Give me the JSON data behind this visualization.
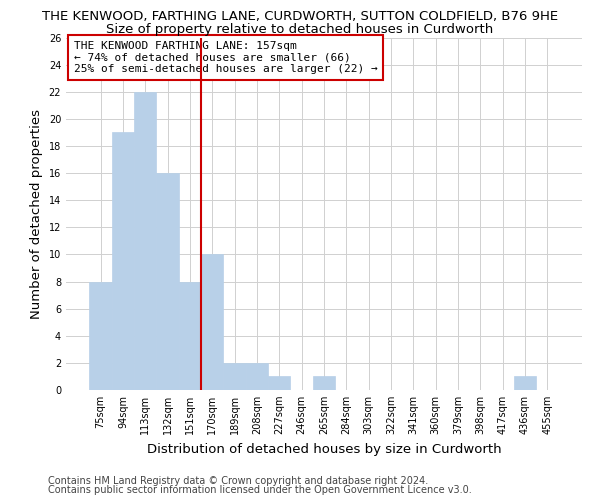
{
  "title1": "THE KENWOOD, FARTHING LANE, CURDWORTH, SUTTON COLDFIELD, B76 9HE",
  "title2": "Size of property relative to detached houses in Curdworth",
  "xlabel": "Distribution of detached houses by size in Curdworth",
  "ylabel": "Number of detached properties",
  "bar_labels": [
    "75sqm",
    "94sqm",
    "113sqm",
    "132sqm",
    "151sqm",
    "170sqm",
    "189sqm",
    "208sqm",
    "227sqm",
    "246sqm",
    "265sqm",
    "284sqm",
    "303sqm",
    "322sqm",
    "341sqm",
    "360sqm",
    "379sqm",
    "398sqm",
    "417sqm",
    "436sqm",
    "455sqm"
  ],
  "bar_values": [
    8,
    19,
    22,
    16,
    8,
    10,
    2,
    2,
    1,
    0,
    1,
    0,
    0,
    0,
    0,
    0,
    0,
    0,
    0,
    1,
    0
  ],
  "bar_color": "#b8d0e8",
  "bar_edge_color": "#b8d0e8",
  "vline_x": 4.5,
  "vline_color": "#cc0000",
  "ylim": [
    0,
    26
  ],
  "yticks": [
    0,
    2,
    4,
    6,
    8,
    10,
    12,
    14,
    16,
    18,
    20,
    22,
    24,
    26
  ],
  "annotation_title": "THE KENWOOD FARTHING LANE: 157sqm",
  "annotation_line1": "← 74% of detached houses are smaller (66)",
  "annotation_line2": "25% of semi-detached houses are larger (22) →",
  "box_color": "#cc0000",
  "footer1": "Contains HM Land Registry data © Crown copyright and database right 2024.",
  "footer2": "Contains public sector information licensed under the Open Government Licence v3.0.",
  "bg_color": "#ffffff",
  "grid_color": "#d0d0d0",
  "title1_fontsize": 9.5,
  "title2_fontsize": 9.5,
  "axis_label_fontsize": 9.5,
  "tick_fontsize": 7,
  "annotation_fontsize": 8,
  "footer_fontsize": 7
}
